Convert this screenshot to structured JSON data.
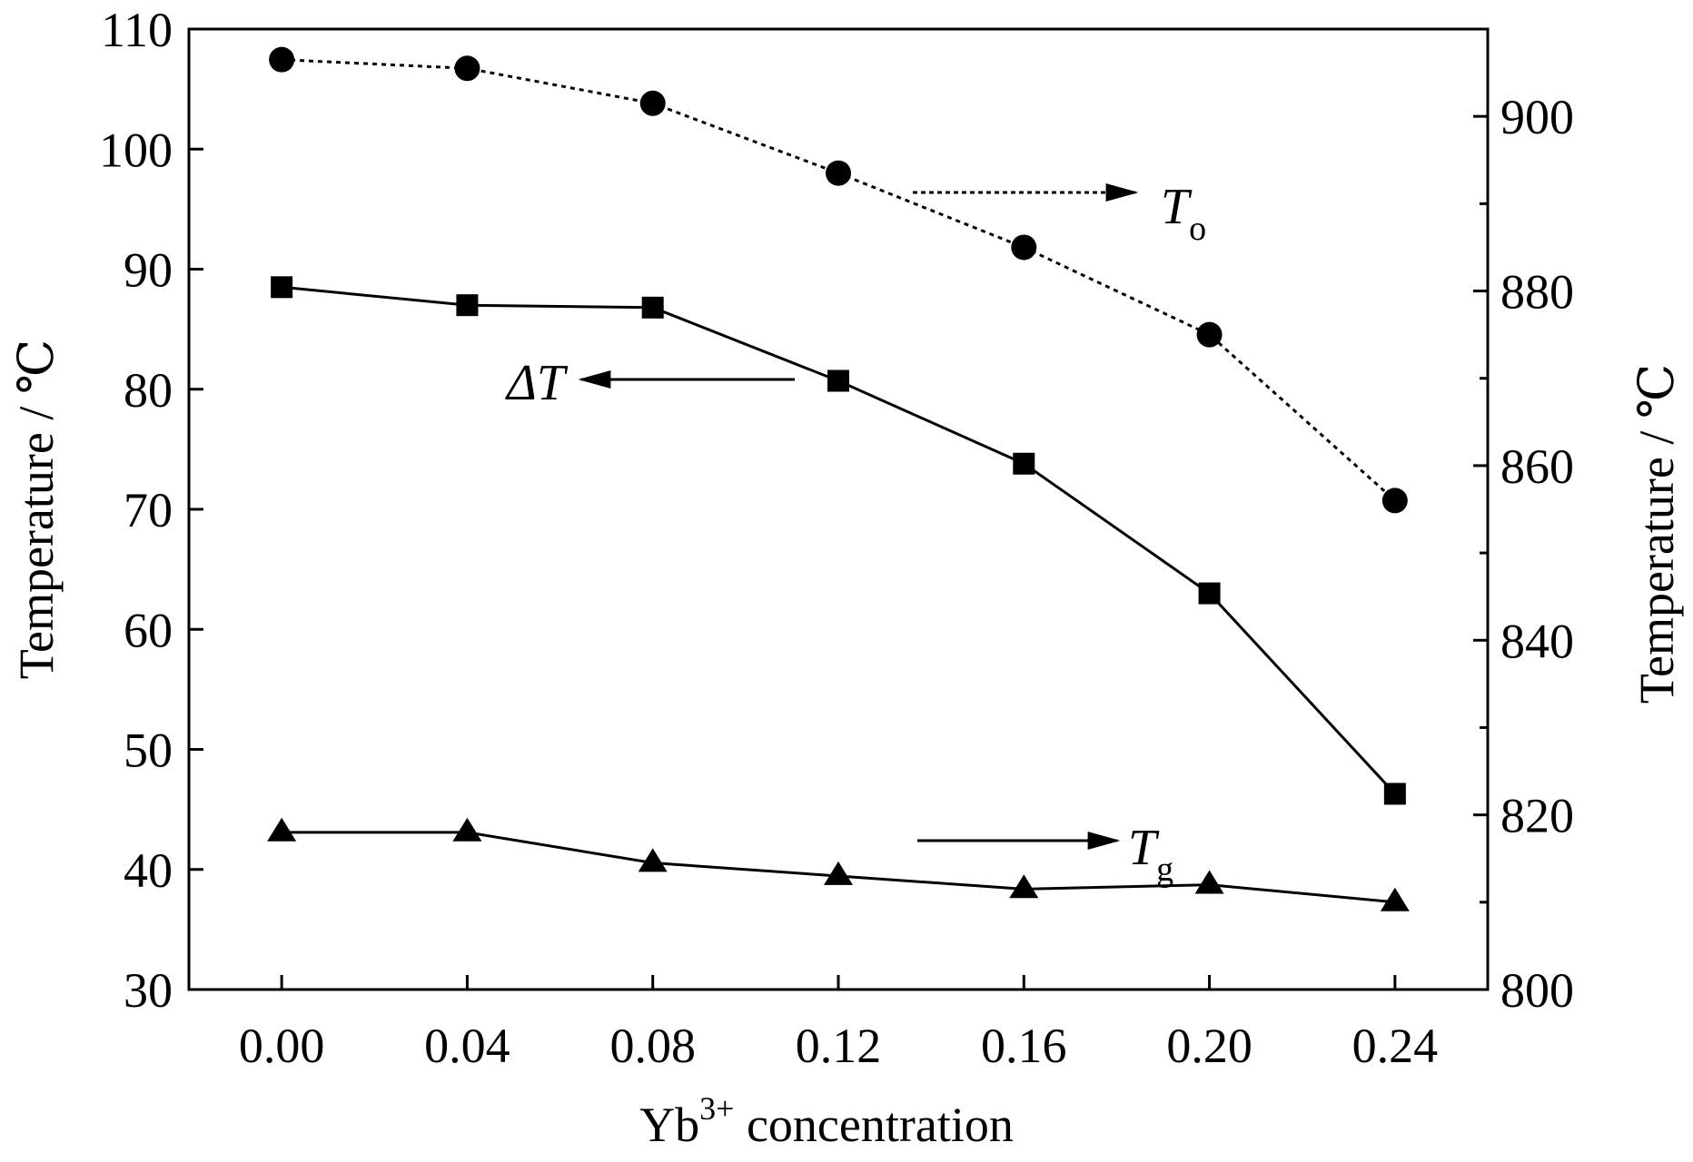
{
  "chart_data": {
    "type": "line",
    "title": "",
    "xlabel": {
      "base": "Yb",
      "sup": "3+",
      "rest": " concentration"
    },
    "ylabel_left": "Temperature / ℃",
    "ylabel_right": "Temperature / ℃",
    "xlim": [
      -0.02,
      0.26
    ],
    "ylim_left": [
      30,
      110
    ],
    "ylim_right": [
      800,
      910
    ],
    "x": [
      0.0,
      0.04,
      0.08,
      0.12,
      0.16,
      0.2,
      0.24
    ],
    "x_tick_labels": [
      "0.00",
      "0.04",
      "0.08",
      "0.12",
      "0.16",
      "0.20",
      "0.24"
    ],
    "y_left_ticks": [
      30,
      40,
      50,
      60,
      70,
      80,
      90,
      100,
      110
    ],
    "y_right_ticks": [
      800,
      820,
      840,
      860,
      880,
      900
    ],
    "y_right_minor_ticks": [
      810,
      830,
      850,
      870,
      890
    ],
    "grid": false,
    "series": [
      {
        "name": "T",
        "name_sub": "o",
        "axis": "right",
        "marker": "circle",
        "line_style": "dotted",
        "values": [
          906.5,
          905.5,
          901.5,
          893.5,
          885.0,
          875.0,
          856.0
        ]
      },
      {
        "name": "ΔT",
        "name_sub": "",
        "axis": "left",
        "marker": "square",
        "line_style": "solid",
        "values": [
          88.5,
          87.0,
          86.8,
          80.7,
          73.8,
          63.0,
          46.3
        ]
      },
      {
        "name": "T",
        "name_sub": "g",
        "axis": "right",
        "marker": "triangle",
        "line_style": "solid",
        "values": [
          818.0,
          818.0,
          814.5,
          813.0,
          811.5,
          812.0,
          810.0
        ]
      }
    ],
    "annotations": [
      {
        "series": 0,
        "arrow": "right",
        "style": "dotted"
      },
      {
        "series": 1,
        "arrow": "left",
        "style": "solid"
      },
      {
        "series": 2,
        "arrow": "right",
        "style": "solid"
      }
    ]
  }
}
